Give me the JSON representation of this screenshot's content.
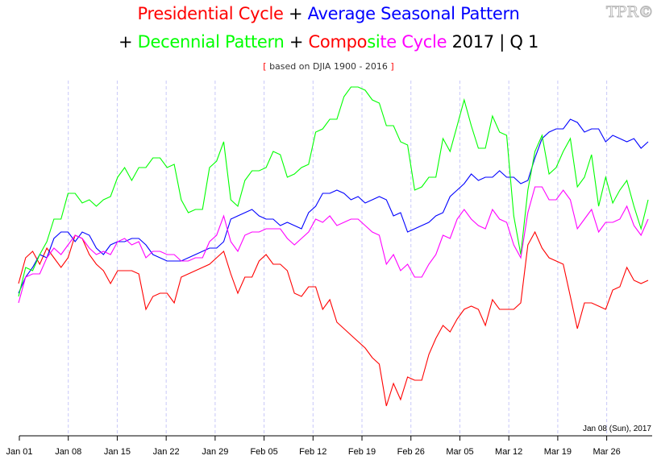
{
  "title": {
    "line1": [
      {
        "text": "Presidential Cycle",
        "color": "#ff0000"
      },
      {
        "text": " + ",
        "color": "#000000"
      },
      {
        "text": "Average Seasonal Pattern",
        "color": "#0000ff"
      }
    ],
    "line2": [
      {
        "text": "+ ",
        "color": "#000000"
      },
      {
        "text": "Decennial Pattern",
        "color": "#00ff00"
      },
      {
        "text": " + ",
        "color": "#000000"
      },
      {
        "text": "Compo",
        "color": "#ff0000"
      },
      {
        "text": "si",
        "color": "#00ff00"
      },
      {
        "text": "te Cycle",
        "color": "#ff00ff"
      },
      {
        "text": " 2017 | Q 1",
        "color": "#000000"
      }
    ]
  },
  "subtitle": {
    "open": "[",
    "text": " based on DJIA 1900 - 2016 ",
    "close": "]"
  },
  "logo": "TPR©",
  "date_note": "Jan 08 (Sun), 2017",
  "chart_data": {
    "type": "line",
    "title": "Presidential Cycle + Average Seasonal Pattern + Decennial Pattern + Composite Cycle 2017 | Q 1",
    "subtitle": "[ based on DJIA 1900 - 2016 ]",
    "xlabel": "",
    "ylabel": "",
    "x_ticks": [
      "Jan 01",
      "Jan 08",
      "Jan 15",
      "Jan 22",
      "Jan 29",
      "Feb 05",
      "Feb 12",
      "Feb 19",
      "Feb 26",
      "Mar 05",
      "Mar 12",
      "Mar 19",
      "Mar 26"
    ],
    "y_ticks": [],
    "ylim": [
      0,
      110
    ],
    "grid": "vertical dashed at weekly ticks",
    "legend": "none (series named by title colors)",
    "x": [
      "Jan 01",
      "Jan 02",
      "Jan 03",
      "Jan 04",
      "Jan 05",
      "Jan 06",
      "Jan 07",
      "Jan 08",
      "Jan 09",
      "Jan 10",
      "Jan 11",
      "Jan 12",
      "Jan 13",
      "Jan 14",
      "Jan 15",
      "Jan 16",
      "Jan 17",
      "Jan 18",
      "Jan 19",
      "Jan 20",
      "Jan 21",
      "Jan 22",
      "Jan 23",
      "Jan 24",
      "Jan 25",
      "Jan 26",
      "Jan 27",
      "Jan 28",
      "Jan 29",
      "Jan 30",
      "Jan 31",
      "Feb 01",
      "Feb 02",
      "Feb 03",
      "Feb 04",
      "Feb 05",
      "Feb 06",
      "Feb 07",
      "Feb 08",
      "Feb 09",
      "Feb 10",
      "Feb 11",
      "Feb 12",
      "Feb 13",
      "Feb 14",
      "Feb 15",
      "Feb 16",
      "Feb 17",
      "Feb 18",
      "Feb 19",
      "Feb 20",
      "Feb 21",
      "Feb 22",
      "Feb 23",
      "Feb 24",
      "Feb 25",
      "Feb 26",
      "Feb 27",
      "Feb 28",
      "Mar 01",
      "Mar 02",
      "Mar 03",
      "Mar 04",
      "Mar 05",
      "Mar 06",
      "Mar 07",
      "Mar 08",
      "Mar 09",
      "Mar 10",
      "Mar 11",
      "Mar 12",
      "Mar 13",
      "Mar 14",
      "Mar 15",
      "Mar 16",
      "Mar 17",
      "Mar 18",
      "Mar 19",
      "Mar 20",
      "Mar 21",
      "Mar 22",
      "Mar 23",
      "Mar 24",
      "Mar 25",
      "Mar 26",
      "Mar 27",
      "Mar 28",
      "Mar 29",
      "Mar 30",
      "Mar 31"
    ],
    "series": [
      {
        "name": "Presidential Cycle",
        "color": "#ff0000",
        "values": [
          47,
          55,
          57,
          53,
          58,
          55,
          52,
          55,
          62,
          61,
          56,
          53,
          51,
          47,
          51,
          51,
          51,
          50,
          39,
          43,
          44,
          44,
          41,
          49,
          50,
          51,
          52,
          53,
          55,
          57,
          50,
          44,
          49,
          49,
          54,
          56,
          53,
          53,
          51,
          44,
          43,
          46,
          46,
          39,
          42,
          35,
          33,
          31,
          29,
          27,
          24,
          22,
          9,
          16,
          11,
          18,
          17,
          17,
          25,
          30,
          34,
          32,
          36,
          39,
          40,
          39,
          34,
          42,
          39,
          39,
          39,
          41,
          59,
          63,
          58,
          55,
          54,
          53,
          43,
          33,
          41,
          41,
          40,
          39,
          45,
          46,
          52,
          48,
          47,
          48
        ]
      },
      {
        "name": "Average Seasonal Pattern",
        "color": "#0000ff",
        "values": [
          44,
          49,
          52,
          56,
          55,
          61,
          63,
          63,
          60,
          63,
          62,
          58,
          56,
          59,
          60,
          60,
          61,
          61,
          59,
          56,
          55,
          54,
          54,
          54,
          55,
          56,
          57,
          58,
          58,
          60,
          67,
          68,
          69,
          70,
          68,
          67,
          67,
          65,
          66,
          65,
          64,
          69,
          71,
          75,
          75,
          76,
          75,
          73,
          74,
          72,
          73,
          74,
          73,
          68,
          69,
          63,
          64,
          65,
          66,
          68,
          69,
          74,
          76,
          78,
          81,
          79,
          80,
          80,
          82,
          80,
          80,
          78,
          79,
          86,
          92,
          94,
          95,
          95,
          98,
          97,
          94,
          95,
          95,
          91,
          93,
          92,
          91,
          92,
          89,
          91
        ]
      },
      {
        "name": "Decennial Pattern",
        "color": "#00ff00",
        "values": [
          43,
          52,
          51,
          56,
          60,
          67,
          67,
          75,
          75,
          72,
          73,
          71,
          73,
          74,
          80,
          83,
          79,
          83,
          83,
          86,
          86,
          83,
          84,
          73,
          69,
          70,
          70,
          83,
          85,
          91,
          73,
          71,
          79,
          82,
          82,
          83,
          88,
          87,
          80,
          81,
          83,
          84,
          94,
          95,
          98,
          98,
          105,
          108,
          108,
          107,
          104,
          103,
          96,
          96,
          91,
          90,
          76,
          77,
          80,
          80,
          92,
          88,
          96,
          104,
          96,
          89,
          89,
          99,
          94,
          93,
          68,
          56,
          76,
          88,
          93,
          81,
          83,
          88,
          92,
          77,
          80,
          87,
          71,
          80,
          72,
          76,
          79,
          71,
          64,
          73
        ]
      },
      {
        "name": "Composite Cycle",
        "color": "#ff00ff",
        "values": [
          41,
          49,
          50,
          50,
          55,
          58,
          56,
          59,
          62,
          61,
          58,
          56,
          57,
          56,
          60,
          61,
          59,
          60,
          55,
          57,
          57,
          56,
          56,
          54,
          54,
          55,
          55,
          60,
          62,
          68,
          60,
          57,
          62,
          63,
          63,
          64,
          64,
          64,
          61,
          59,
          61,
          63,
          67,
          66,
          68,
          65,
          66,
          67,
          67,
          65,
          63,
          62,
          53,
          56,
          51,
          53,
          49,
          49,
          53,
          56,
          62,
          61,
          67,
          70,
          67,
          65,
          64,
          70,
          67,
          66,
          59,
          55,
          69,
          77,
          77,
          73,
          73,
          76,
          73,
          64,
          67,
          70,
          63,
          66,
          66,
          67,
          71,
          65,
          62,
          67
        ]
      }
    ]
  }
}
